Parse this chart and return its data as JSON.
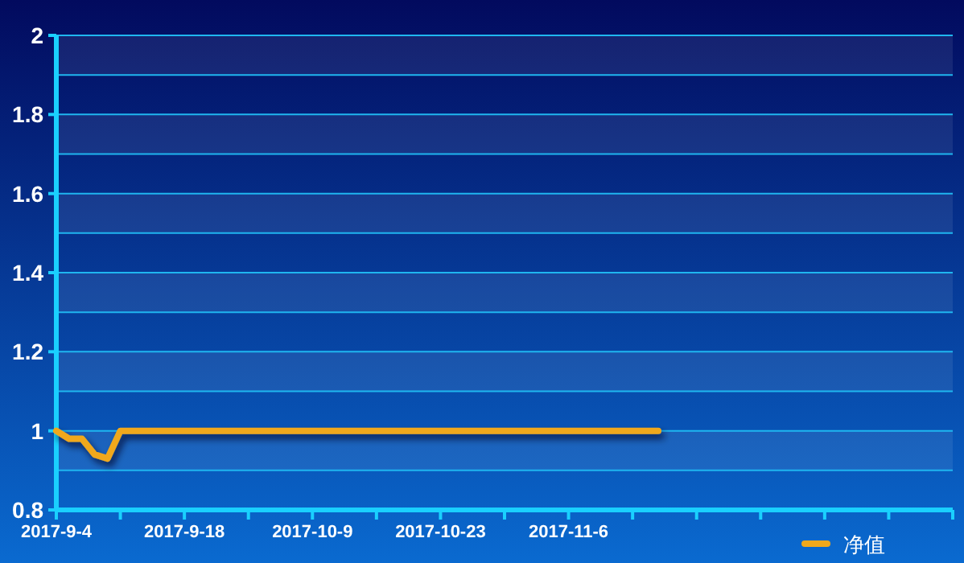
{
  "chart_data": {
    "type": "line",
    "categories": [
      "2017-9-4",
      null,
      null,
      null,
      null,
      null,
      null,
      null,
      null,
      null,
      "2017-9-18",
      null,
      null,
      null,
      null,
      null,
      null,
      null,
      null,
      null,
      "2017-10-9",
      null,
      null,
      null,
      null,
      null,
      null,
      null,
      null,
      null,
      "2017-10-23",
      null,
      null,
      null,
      null,
      null,
      null,
      null,
      null,
      null,
      "2017-11-6",
      null,
      null,
      null,
      null,
      null,
      null,
      null,
      null,
      null,
      null,
      null,
      null,
      null,
      null,
      null,
      null,
      null,
      null,
      null,
      null,
      null,
      null,
      null,
      null,
      null,
      null,
      null,
      null,
      null,
      null
    ],
    "series": [
      {
        "name": "净值",
        "color": "#f0a81c",
        "values": [
          1,
          0.98,
          0.98,
          0.94,
          0.93,
          1,
          1,
          1,
          1,
          1,
          1,
          1,
          1,
          1,
          1,
          1,
          1,
          1,
          1,
          1,
          1,
          1,
          1,
          1,
          1,
          1,
          1,
          1,
          1,
          1,
          1,
          1,
          1,
          1,
          1,
          1,
          1,
          1,
          1,
          1,
          1,
          1,
          1,
          1,
          1,
          1,
          1,
          1,
          null,
          null,
          null,
          null,
          null,
          null,
          null,
          null,
          null,
          null,
          null,
          null,
          null,
          null,
          null,
          null,
          null,
          null,
          null,
          null,
          null,
          null,
          null
        ]
      }
    ],
    "ylim": [
      0.8,
      2
    ],
    "yticks": [
      0.8,
      {
        "value": 0.9,
        "label": null
      },
      1,
      {
        "value": 1.1,
        "label": null
      },
      1.2,
      {
        "value": 1.3,
        "label": null
      },
      1.4,
      {
        "value": 1.5,
        "label": null
      },
      1.6,
      {
        "value": 1.7,
        "label": null
      },
      1.8,
      {
        "value": 1.9,
        "label": null
      },
      2
    ],
    "grid": "y",
    "legend": "bottom right",
    "line_style": "solid",
    "marker": "none"
  }
}
